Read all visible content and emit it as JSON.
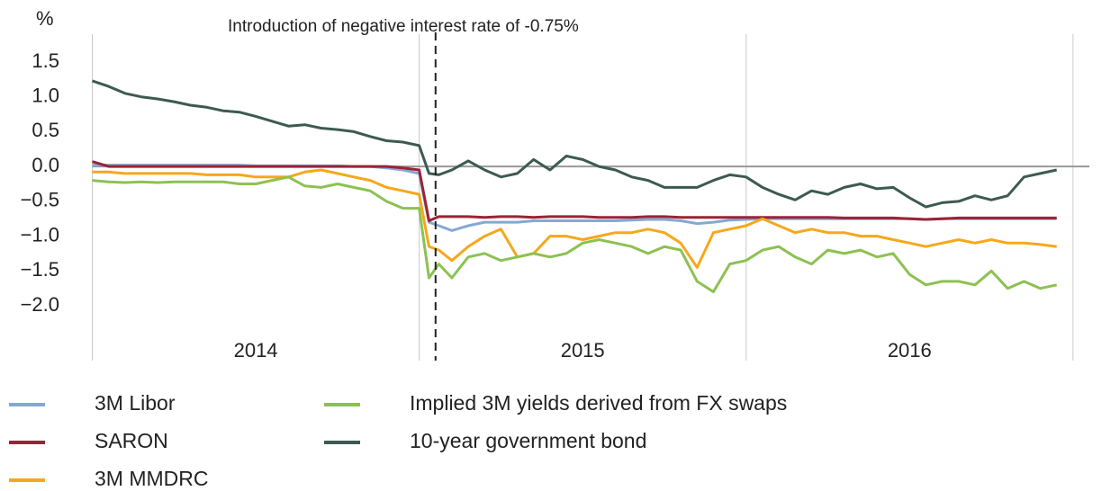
{
  "chart_data": {
    "type": "line",
    "y_unit_label": "%",
    "annotation": {
      "text": "Introduction of negative interest rate of -0.75%",
      "x": 2015.05
    },
    "x": [
      2014.0,
      2014.05,
      2014.1,
      2014.15,
      2014.2,
      2014.25,
      2014.3,
      2014.35,
      2014.4,
      2014.45,
      2014.5,
      2014.55,
      2014.6,
      2014.65,
      2014.7,
      2014.75,
      2014.8,
      2014.85,
      2014.9,
      2014.95,
      2015.0,
      2015.03,
      2015.06,
      2015.1,
      2015.15,
      2015.2,
      2015.25,
      2015.3,
      2015.35,
      2015.4,
      2015.45,
      2015.5,
      2015.55,
      2015.6,
      2015.65,
      2015.7,
      2015.75,
      2015.8,
      2015.85,
      2015.9,
      2015.95,
      2016.0,
      2016.05,
      2016.1,
      2016.15,
      2016.2,
      2016.25,
      2016.3,
      2016.35,
      2016.4,
      2016.45,
      2016.5,
      2016.55,
      2016.6,
      2016.65,
      2016.7,
      2016.75,
      2016.8,
      2016.85,
      2016.9,
      2016.95
    ],
    "xlim": [
      2013.96,
      2017.05
    ],
    "xticks": [
      {
        "value": 2014.5,
        "label": "2014"
      },
      {
        "value": 2015.5,
        "label": "2015"
      },
      {
        "value": 2016.5,
        "label": "2016"
      }
    ],
    "xgrid": [
      2014,
      2015,
      2016,
      2017
    ],
    "ylim": [
      -2.4,
      1.9
    ],
    "yticks": [
      {
        "value": 1.5,
        "label": "1.5"
      },
      {
        "value": 1.0,
        "label": "1.0"
      },
      {
        "value": 0.5,
        "label": "0.5"
      },
      {
        "value": 0,
        "label": "0.0"
      },
      {
        "value": -0.5,
        "label": "−0.5"
      },
      {
        "value": -1.0,
        "label": "−1.0"
      },
      {
        "value": -1.5,
        "label": "−1.5"
      },
      {
        "value": -2.0,
        "label": "−2.0"
      }
    ],
    "zero_line": true,
    "series": [
      {
        "name": "3M Libor",
        "color": "#86a8d2",
        "values": [
          0.02,
          0.02,
          0.02,
          0.02,
          0.02,
          0.02,
          0.02,
          0.02,
          0.02,
          0.02,
          0.01,
          0.01,
          0.01,
          0.01,
          0.01,
          0.01,
          0.0,
          0.0,
          -0.02,
          -0.05,
          -0.1,
          -0.8,
          -0.85,
          -0.92,
          -0.85,
          -0.8,
          -0.8,
          -0.8,
          -0.78,
          -0.78,
          -0.78,
          -0.78,
          -0.78,
          -0.78,
          -0.77,
          -0.76,
          -0.76,
          -0.78,
          -0.82,
          -0.8,
          -0.77,
          -0.76,
          -0.75,
          -0.75,
          -0.75,
          -0.75,
          -0.75,
          -0.75,
          -0.75,
          -0.75,
          -0.75,
          -0.75,
          -0.76,
          -0.75,
          -0.75,
          -0.75,
          -0.75,
          -0.75,
          -0.75,
          -0.75,
          -0.75
        ]
      },
      {
        "name": "SARON",
        "color": "#9b2335",
        "values": [
          0.07,
          0.0,
          0.0,
          0.0,
          0.0,
          0.0,
          0.0,
          0.0,
          0.0,
          0.0,
          0.0,
          0.0,
          0.0,
          0.0,
          0.0,
          0.0,
          0.0,
          0.0,
          0.0,
          -0.02,
          -0.05,
          -0.78,
          -0.72,
          -0.72,
          -0.72,
          -0.73,
          -0.72,
          -0.72,
          -0.73,
          -0.72,
          -0.72,
          -0.72,
          -0.73,
          -0.73,
          -0.73,
          -0.72,
          -0.72,
          -0.73,
          -0.73,
          -0.73,
          -0.73,
          -0.73,
          -0.73,
          -0.73,
          -0.73,
          -0.73,
          -0.73,
          -0.74,
          -0.74,
          -0.74,
          -0.74,
          -0.75,
          -0.76,
          -0.75,
          -0.74,
          -0.74,
          -0.74,
          -0.74,
          -0.74,
          -0.74,
          -0.74
        ]
      },
      {
        "name": "3M MMDRC",
        "color": "#f5a81c",
        "values": [
          -0.08,
          -0.08,
          -0.1,
          -0.1,
          -0.1,
          -0.1,
          -0.1,
          -0.12,
          -0.12,
          -0.12,
          -0.15,
          -0.15,
          -0.15,
          -0.08,
          -0.05,
          -0.1,
          -0.15,
          -0.2,
          -0.3,
          -0.35,
          -0.4,
          -1.15,
          -1.2,
          -1.35,
          -1.15,
          -1.0,
          -0.9,
          -1.3,
          -1.25,
          -1.0,
          -1.0,
          -1.05,
          -1.0,
          -0.95,
          -0.95,
          -0.9,
          -0.95,
          -1.1,
          -1.45,
          -0.95,
          -0.9,
          -0.85,
          -0.75,
          -0.85,
          -0.95,
          -0.9,
          -0.95,
          -0.95,
          -1.0,
          -1.0,
          -1.05,
          -1.1,
          -1.15,
          -1.1,
          -1.05,
          -1.1,
          -1.05,
          -1.1,
          -1.1,
          -1.12,
          -1.15
        ]
      },
      {
        "name": "Implied 3M yields derived from FX swaps",
        "color": "#8dc152",
        "values": [
          -0.2,
          -0.22,
          -0.23,
          -0.22,
          -0.23,
          -0.22,
          -0.22,
          -0.22,
          -0.22,
          -0.25,
          -0.25,
          -0.2,
          -0.15,
          -0.28,
          -0.3,
          -0.25,
          -0.3,
          -0.35,
          -0.5,
          -0.6,
          -0.6,
          -1.6,
          -1.4,
          -1.6,
          -1.3,
          -1.25,
          -1.35,
          -1.3,
          -1.25,
          -1.3,
          -1.25,
          -1.1,
          -1.05,
          -1.1,
          -1.15,
          -1.25,
          -1.15,
          -1.2,
          -1.65,
          -1.8,
          -1.4,
          -1.35,
          -1.2,
          -1.15,
          -1.3,
          -1.4,
          -1.2,
          -1.25,
          -1.2,
          -1.3,
          -1.25,
          -1.55,
          -1.7,
          -1.65,
          -1.65,
          -1.7,
          -1.5,
          -1.75,
          -1.65,
          -1.75,
          -1.7
        ]
      },
      {
        "name": "10-year government bond",
        "color": "#3d5a52",
        "values": [
          1.23,
          1.15,
          1.05,
          1.0,
          0.97,
          0.93,
          0.88,
          0.85,
          0.8,
          0.78,
          0.72,
          0.65,
          0.58,
          0.6,
          0.55,
          0.53,
          0.5,
          0.43,
          0.37,
          0.35,
          0.3,
          -0.1,
          -0.12,
          -0.05,
          0.08,
          -0.05,
          -0.15,
          -0.1,
          0.1,
          -0.05,
          0.15,
          0.1,
          0.0,
          -0.05,
          -0.15,
          -0.2,
          -0.3,
          -0.3,
          -0.3,
          -0.2,
          -0.12,
          -0.15,
          -0.3,
          -0.4,
          -0.48,
          -0.35,
          -0.4,
          -0.3,
          -0.25,
          -0.32,
          -0.3,
          -0.45,
          -0.58,
          -0.52,
          -0.5,
          -0.42,
          -0.48,
          -0.42,
          -0.15,
          -0.1,
          -0.05
        ]
      }
    ]
  }
}
